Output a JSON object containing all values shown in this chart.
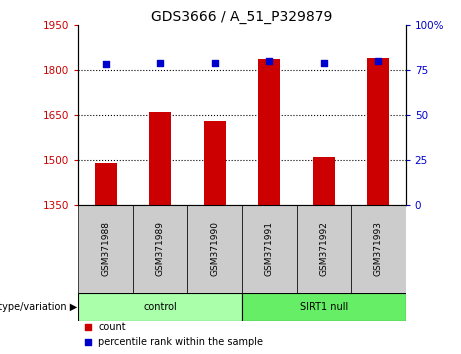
{
  "title": "GDS3666 / A_51_P329879",
  "samples": [
    "GSM371988",
    "GSM371989",
    "GSM371990",
    "GSM371991",
    "GSM371992",
    "GSM371993"
  ],
  "counts": [
    1490,
    1660,
    1630,
    1835,
    1510,
    1840
  ],
  "percentiles": [
    78,
    79,
    79,
    80,
    79,
    80
  ],
  "ylim_left": [
    1350,
    1950
  ],
  "ylim_right": [
    0,
    100
  ],
  "yticks_left": [
    1350,
    1500,
    1650,
    1800,
    1950
  ],
  "yticks_right": [
    0,
    25,
    50,
    75,
    100
  ],
  "ytick_labels_right": [
    "0",
    "25",
    "50",
    "75",
    "100%"
  ],
  "bar_color": "#cc0000",
  "dot_color": "#0000cc",
  "groups": [
    {
      "label": "control",
      "indices": [
        0,
        1,
        2
      ]
    },
    {
      "label": "SIRT1 null",
      "indices": [
        3,
        4,
        5
      ]
    }
  ],
  "group_colors": [
    "#aaffaa",
    "#66ee66"
  ],
  "group_row_label": "genotype/variation",
  "legend_items": [
    {
      "label": "count",
      "color": "#cc0000"
    },
    {
      "label": "percentile rank within the sample",
      "color": "#0000cc"
    }
  ],
  "bar_width": 0.4,
  "axis_color_left": "#cc0000",
  "axis_color_right": "#0000cc",
  "label_bg_color": "#cccccc",
  "title_fontsize": 10,
  "tick_fontsize": 7.5,
  "sample_fontsize": 6.5,
  "group_fontsize": 7,
  "legend_fontsize": 7
}
